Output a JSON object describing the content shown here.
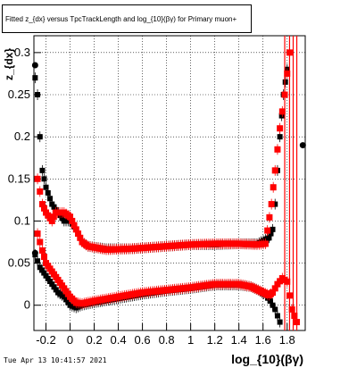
{
  "chart_data": {
    "type": "scatter",
    "title": "Fitted z_{dx} versus TpcTrackLength and log_{10}(βγ) for Primary muon+",
    "xlabel": "log_{10}(βγ)",
    "ylabel": "z_{dx}",
    "xlim": [
      -0.3,
      1.95
    ],
    "ylim": [
      -0.03,
      0.32
    ],
    "x_ticks": [
      "-0.2",
      "0",
      "0.2",
      "0.4",
      "0.6",
      "0.8",
      "1",
      "1.2",
      "1.4",
      "1.6",
      "1.8"
    ],
    "x_tick_values": [
      -0.2,
      0,
      0.2,
      0.4,
      0.6,
      0.8,
      1.0,
      1.2,
      1.4,
      1.6,
      1.8
    ],
    "y_ticks": [
      "0",
      "0.05",
      "0.1",
      "0.15",
      "0.2",
      "0.25",
      "0.3"
    ],
    "y_tick_values": [
      0,
      0.05,
      0.1,
      0.15,
      0.2,
      0.25,
      0.3
    ],
    "grid": true,
    "series": [
      {
        "color": "#000000",
        "values": []
      },
      {
        "color": "#ff0000",
        "values": []
      },
      {
        "color": "#000000",
        "values": []
      },
      {
        "color": "#ff0000",
        "values": []
      }
    ],
    "curves": {
      "black_upper": [
        [
          -0.29,
          0.27
        ],
        [
          -0.27,
          0.25
        ],
        [
          -0.25,
          0.2
        ],
        [
          -0.23,
          0.16
        ],
        [
          -0.2,
          0.14
        ],
        [
          -0.15,
          0.12
        ],
        [
          -0.1,
          0.11
        ],
        [
          -0.05,
          0.1
        ],
        [
          0.0,
          0.1
        ],
        [
          0.05,
          0.09
        ],
        [
          0.1,
          0.075
        ],
        [
          0.15,
          0.07
        ],
        [
          0.3,
          0.067
        ],
        [
          0.5,
          0.067
        ],
        [
          0.8,
          0.07
        ],
        [
          1.0,
          0.072
        ],
        [
          1.2,
          0.072
        ],
        [
          1.4,
          0.073
        ],
        [
          1.55,
          0.073
        ],
        [
          1.62,
          0.078
        ],
        [
          1.65,
          0.08
        ],
        [
          1.68,
          0.09
        ],
        [
          1.7,
          0.12
        ],
        [
          1.72,
          0.16
        ],
        [
          1.74,
          0.2
        ],
        [
          1.77,
          0.25
        ],
        [
          1.8,
          0.28
        ]
      ],
      "red_upper": [
        [
          -0.27,
          0.15
        ],
        [
          -0.23,
          0.12
        ],
        [
          -0.2,
          0.11
        ],
        [
          -0.15,
          0.1
        ],
        [
          -0.12,
          0.11
        ],
        [
          -0.05,
          0.11
        ],
        [
          0.0,
          0.105
        ],
        [
          0.05,
          0.09
        ],
        [
          0.1,
          0.075
        ],
        [
          0.15,
          0.07
        ],
        [
          0.3,
          0.066
        ],
        [
          0.5,
          0.067
        ],
        [
          0.8,
          0.07
        ],
        [
          1.0,
          0.072
        ],
        [
          1.2,
          0.073
        ],
        [
          1.4,
          0.073
        ],
        [
          1.55,
          0.072
        ],
        [
          1.62,
          0.073
        ],
        [
          1.67,
          0.12
        ],
        [
          1.7,
          0.16
        ],
        [
          1.74,
          0.21
        ],
        [
          1.78,
          0.25
        ],
        [
          1.82,
          0.3
        ]
      ],
      "black_lower": [
        [
          -0.29,
          0.06
        ],
        [
          -0.25,
          0.045
        ],
        [
          -0.2,
          0.035
        ],
        [
          -0.15,
          0.025
        ],
        [
          -0.1,
          0.015
        ],
        [
          -0.05,
          0.01
        ],
        [
          0.0,
          0.0
        ],
        [
          0.05,
          -0.003
        ],
        [
          0.1,
          0.0
        ],
        [
          0.2,
          0.003
        ],
        [
          0.4,
          0.008
        ],
        [
          0.6,
          0.013
        ],
        [
          0.8,
          0.017
        ],
        [
          1.0,
          0.02
        ],
        [
          1.2,
          0.024
        ],
        [
          1.4,
          0.024
        ],
        [
          1.5,
          0.022
        ],
        [
          1.56,
          0.018
        ],
        [
          1.62,
          0.012
        ],
        [
          1.66,
          0.005
        ],
        [
          1.7,
          -0.005
        ],
        [
          1.74,
          -0.02
        ]
      ],
      "red_lower": [
        [
          -0.27,
          0.085
        ],
        [
          -0.23,
          0.065
        ],
        [
          -0.2,
          0.05
        ],
        [
          -0.15,
          0.04
        ],
        [
          -0.1,
          0.03
        ],
        [
          -0.05,
          0.02
        ],
        [
          0.0,
          0.01
        ],
        [
          0.05,
          0.003
        ],
        [
          0.1,
          0.002
        ],
        [
          0.2,
          0.005
        ],
        [
          0.4,
          0.01
        ],
        [
          0.6,
          0.015
        ],
        [
          0.8,
          0.018
        ],
        [
          1.0,
          0.021
        ],
        [
          1.2,
          0.025
        ],
        [
          1.4,
          0.025
        ],
        [
          1.5,
          0.022
        ],
        [
          1.56,
          0.018
        ],
        [
          1.62,
          0.014
        ],
        [
          1.65,
          0.012
        ],
        [
          1.68,
          0.015
        ],
        [
          1.72,
          0.025
        ],
        [
          1.76,
          0.032
        ],
        [
          1.8,
          0.028
        ],
        [
          1.84,
          -0.005
        ],
        [
          1.88,
          -0.02
        ]
      ]
    },
    "edge_points": [
      {
        "x": -0.29,
        "y": 0.285,
        "color": "#000000"
      },
      {
        "x": -0.29,
        "y": 0.062,
        "color": "#000000"
      },
      {
        "x": 1.93,
        "y": 0.19,
        "color": "#000000"
      }
    ]
  },
  "footer": {
    "timestamp": "Tue Apr 13 10:41:57 2021"
  }
}
